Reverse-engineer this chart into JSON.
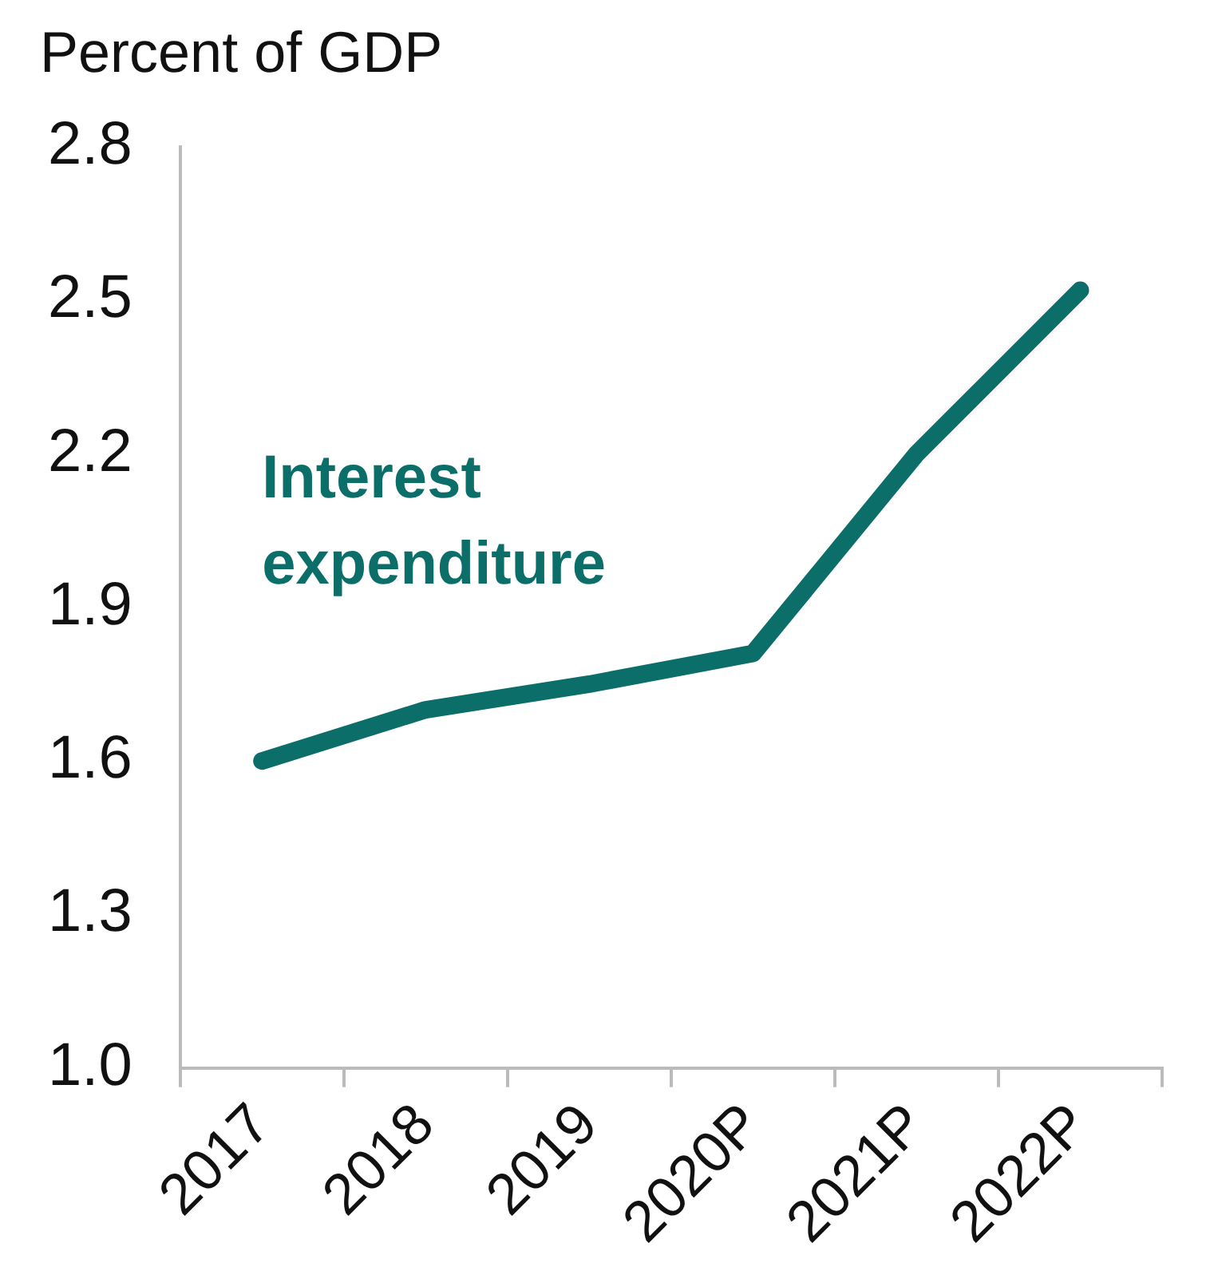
{
  "chart_data": {
    "type": "line",
    "ylabel": "Percent of GDP",
    "categories": [
      "2017",
      "2018",
      "2019",
      "2020P",
      "2021P",
      "2022P"
    ],
    "series": [
      {
        "name": "Interest expenditure",
        "color": "#0b6e69",
        "values": [
          1.6,
          1.7,
          1.75,
          1.81,
          2.2,
          2.52
        ]
      }
    ],
    "ylim": [
      1.0,
      2.8
    ],
    "yticks": [
      {
        "value": 1.0,
        "label": "1.0"
      },
      {
        "value": 1.3,
        "label": "1.3"
      },
      {
        "value": 1.6,
        "label": "1.6"
      },
      {
        "value": 1.9,
        "label": "1.9"
      },
      {
        "value": 2.2,
        "label": "2.2"
      },
      {
        "value": 2.5,
        "label": "2.5"
      },
      {
        "value": 2.8,
        "label": "2.8"
      }
    ],
    "grid": false,
    "legend": false,
    "marker": "none",
    "line_style": "solid"
  }
}
